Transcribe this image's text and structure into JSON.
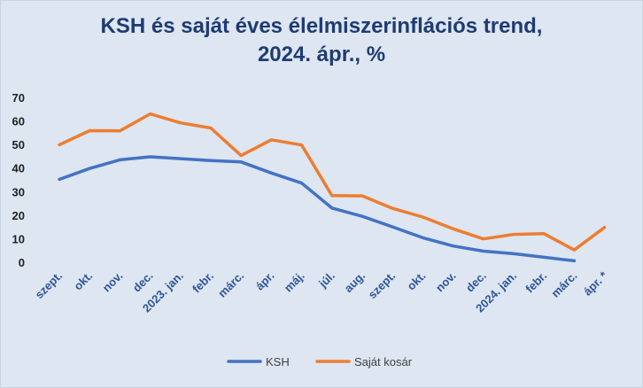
{
  "chart_data": {
    "type": "line",
    "title_line1": "KSH és saját éves élelmiszerinflációs trend,",
    "title_line2": "2024. ápr., %",
    "categories": [
      "szept.",
      "okt.",
      "nov.",
      "dec.",
      "2023. jan.",
      "febr.",
      "márc.",
      "ápr.",
      "máj.",
      "júl.",
      "aug.",
      "szept.",
      "okt.",
      "nov.",
      "dec.",
      "2024. jan.",
      "febr.",
      "márc.",
      "ápr. *"
    ],
    "y_ticks": [
      "70",
      "60",
      "50",
      "40",
      "30",
      "20",
      "10",
      "0"
    ],
    "ylim": [
      0,
      70
    ],
    "grid": false,
    "legend_position": "bottom",
    "series": [
      {
        "name": "KSH",
        "color": "#4472c4",
        "values": [
          35.2,
          39.8,
          43.5,
          44.8,
          44.0,
          43.2,
          42.6,
          37.9,
          33.6,
          23.0,
          19.5,
          15.0,
          10.4,
          6.9,
          4.7,
          3.6,
          2.1,
          0.6,
          null
        ]
      },
      {
        "name": "Saját kosár",
        "color": "#ed7d31",
        "values": [
          49.9,
          55.9,
          55.8,
          63.0,
          59.2,
          57.0,
          45.3,
          52.0,
          49.8,
          28.3,
          28.2,
          22.9,
          19.2,
          14.2,
          9.9,
          11.8,
          12.1,
          5.2,
          14.8
        ]
      }
    ]
  }
}
